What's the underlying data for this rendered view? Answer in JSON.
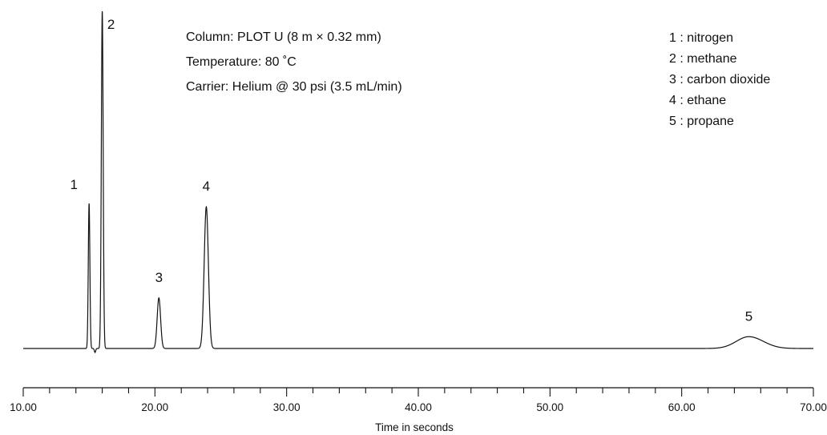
{
  "chart_data": {
    "type": "line",
    "title": "",
    "xlabel": "Time in seconds",
    "ylabel": "",
    "xlim": [
      10,
      70
    ],
    "x_ticks": [
      "10.00",
      "20.00",
      "30.00",
      "40.00",
      "50.00",
      "60.00",
      "70.00"
    ],
    "grid": false,
    "conditions": [
      "Column: PLOT U (8 m × 0.32 mm)",
      "Temperature: 80 ˚C",
      "Carrier: Helium @ 30 psi (3.5 mL/min)"
    ],
    "legend": [
      "1 : nitrogen",
      "2 : methane",
      "3 : carbon dioxide",
      "4 : ethane",
      "5 : propane"
    ],
    "legend_placement": "top-right",
    "peaks": [
      {
        "label": "1",
        "compound": "nitrogen",
        "retention_time": 15.0,
        "relative_height": 0.43
      },
      {
        "label": "2",
        "compound": "methane",
        "retention_time": 16.0,
        "relative_height": 1.0
      },
      {
        "label": "3",
        "compound": "carbon dioxide",
        "retention_time": 20.3,
        "relative_height": 0.15
      },
      {
        "label": "4",
        "compound": "ethane",
        "retention_time": 23.9,
        "relative_height": 0.42
      },
      {
        "label": "5",
        "compound": "propane",
        "retention_time": 65.1,
        "relative_height": 0.035
      }
    ],
    "line_color": "#111111"
  }
}
